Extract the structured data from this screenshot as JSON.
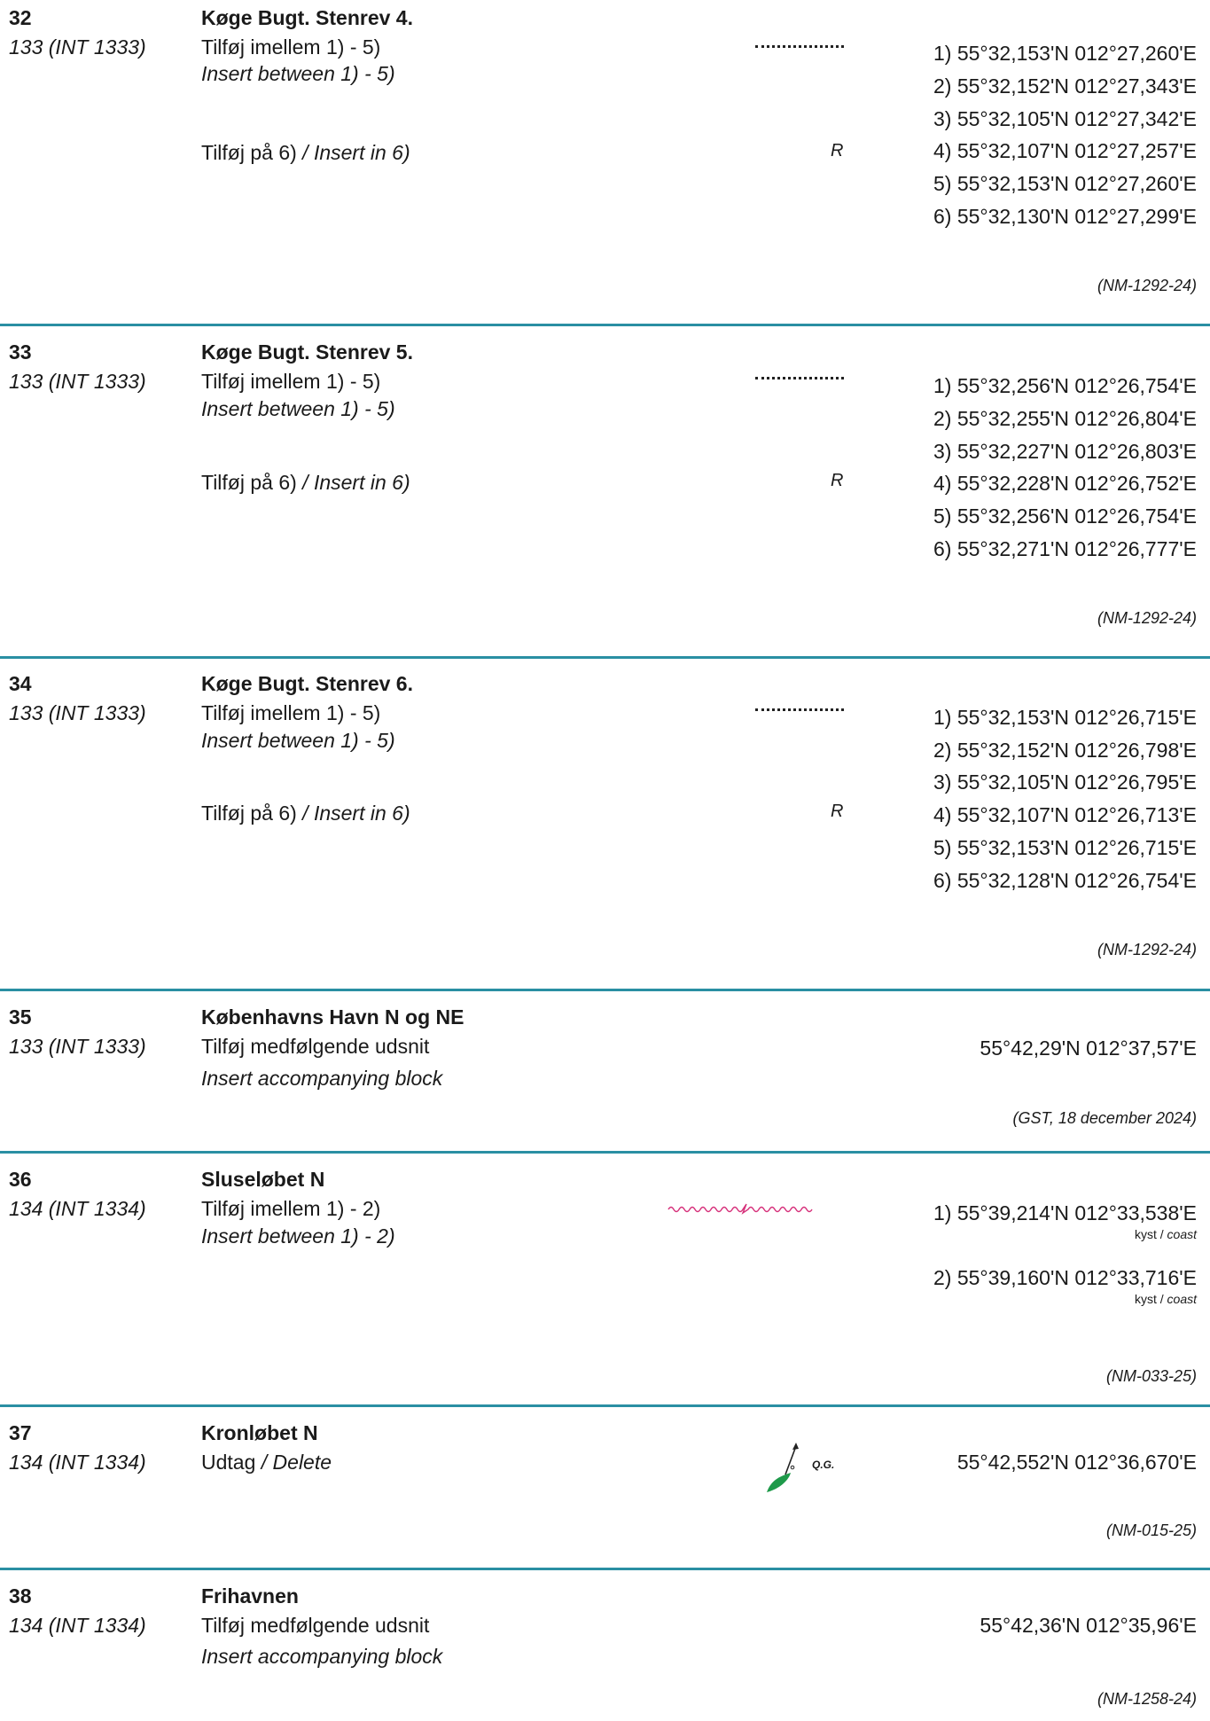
{
  "entries": [
    {
      "number": "32",
      "chart": "133 (INT 1333)",
      "title": "Køge Bugt. Stenrev 4.",
      "inst1_da": "Tilføj imellem 1) - 5)",
      "inst1_en": "Insert between 1) - 5)",
      "inst2_da": "Tilføj på 6)",
      "inst2_en": "/ Insert in 6)",
      "symbol_r": "R",
      "coords": [
        "1) 55°32,153'N 012°27,260'E",
        "2) 55°32,152'N 012°27,343'E",
        "3) 55°32,105'N 012°27,342'E",
        "4) 55°32,107'N 012°27,257'E",
        "5) 55°32,153'N 012°27,260'E",
        "6) 55°32,130'N 012°27,299'E"
      ],
      "source": "(NM-1292-24)"
    },
    {
      "number": "33",
      "chart": "133 (INT 1333)",
      "title": "Køge Bugt. Stenrev 5.",
      "inst1_da": "Tilføj imellem 1) - 5)",
      "inst1_en": "Insert between 1) - 5)",
      "inst2_da": "Tilføj på 6)",
      "inst2_en": "/ Insert in 6)",
      "symbol_r": "R",
      "coords": [
        "1) 55°32,256'N 012°26,754'E",
        "2) 55°32,255'N 012°26,804'E",
        "3) 55°32,227'N 012°26,803'E",
        "4) 55°32,228'N 012°26,752'E",
        "5) 55°32,256'N 012°26,754'E",
        "6) 55°32,271'N 012°26,777'E"
      ],
      "source": "(NM-1292-24)"
    },
    {
      "number": "34",
      "chart": "133 (INT 1333)",
      "title": "Køge Bugt. Stenrev 6.",
      "inst1_da": "Tilføj imellem 1) - 5)",
      "inst1_en": "Insert between 1) - 5)",
      "inst2_da": "Tilføj på 6)",
      "inst2_en": "/ Insert in 6)",
      "symbol_r": "R",
      "coords": [
        "1) 55°32,153'N 012°26,715'E",
        "2) 55°32,152'N 012°26,798'E",
        "3) 55°32,105'N 012°26,795'E",
        "4) 55°32,107'N 012°26,713'E",
        "5) 55°32,153'N 012°26,715'E",
        "6) 55°32,128'N 012°26,754'E"
      ],
      "source": "(NM-1292-24)"
    },
    {
      "number": "35",
      "chart": "133 (INT 1333)",
      "title": "Københavns Havn N og NE",
      "inst1_da": "Tilføj medfølgende udsnit",
      "inst1_en": "Insert accompanying block",
      "coords": [
        "55°42,29'N 012°37,57'E"
      ],
      "source": "(GST, 18 december 2024)"
    },
    {
      "number": "36",
      "chart": "134 (INT 1334)",
      "title": "Sluseløbet N",
      "inst1_da": "Tilføj imellem 1) - 2)",
      "inst1_en": "Insert between 1) - 2)",
      "coords": [
        "1) 55°39,214'N 012°33,538'E",
        "2) 55°39,160'N 012°33,716'E"
      ],
      "coast_da": "kyst /",
      "coast_en": "coast",
      "source": "(NM-033-25)"
    },
    {
      "number": "37",
      "chart": "134 (INT 1334)",
      "title": "Kronløbet N",
      "inst1_da": "Udtag",
      "inst1_en": "/ Delete",
      "light_label": "Q.G.",
      "coords": [
        "55°42,552'N 012°36,670'E"
      ],
      "source": "(NM-015-25)"
    },
    {
      "number": "38",
      "chart": "134 (INT 1334)",
      "title": "Frihavnen",
      "inst1_da": "Tilføj medfølgende udsnit",
      "inst1_en": "Insert accompanying block",
      "coords": [
        "55°42,36'N 012°35,96'E"
      ],
      "source": "(NM-1258-24)"
    }
  ],
  "colors": {
    "rule": "#2a8fa3",
    "coastline_symbol": "#d6307a",
    "buoy_symbol": "#1e9a4a"
  }
}
